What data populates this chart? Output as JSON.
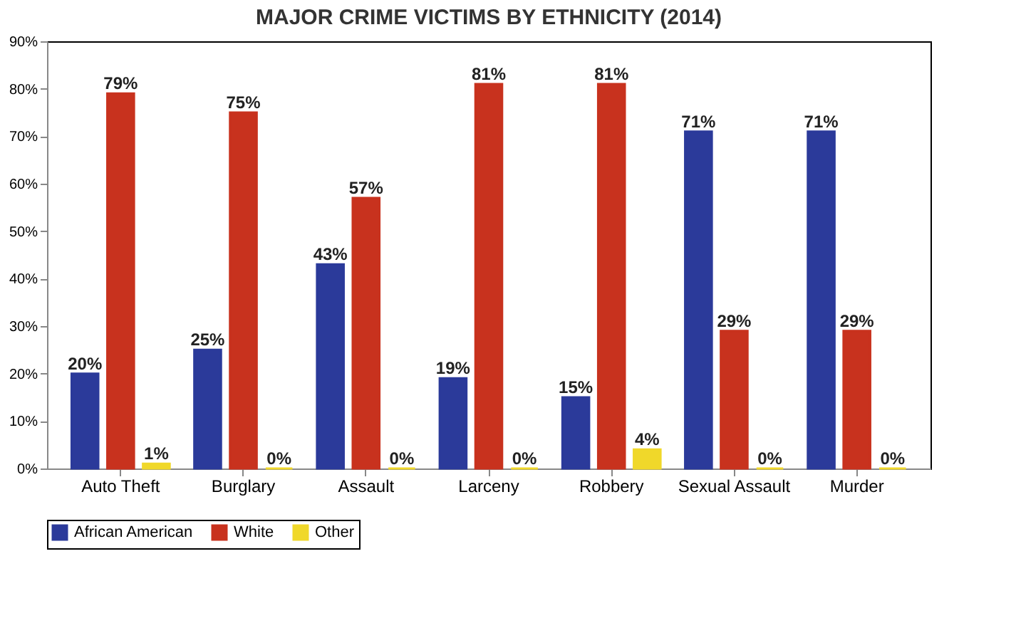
{
  "chart_data": {
    "type": "bar",
    "title": "MAJOR CRIME VICTIMS BY ETHNICITY (2014)",
    "categories": [
      "Auto Theft",
      "Burglary",
      "Assault",
      "Larceny",
      "Robbery",
      "Sexual Assault",
      "Murder"
    ],
    "series": [
      {
        "name": "African American",
        "color": "#2b3a9a",
        "values": [
          20,
          25,
          43,
          19,
          15,
          71,
          71
        ],
        "value_labels": [
          "20%",
          "25%",
          "43%",
          "19%",
          "15%",
          "71%",
          "71%"
        ]
      },
      {
        "name": "White",
        "color": "#c8321e",
        "values": [
          79,
          75,
          57,
          81,
          81,
          29,
          29
        ],
        "value_labels": [
          "79%",
          "75%",
          "57%",
          "81%",
          "81%",
          "29%",
          "29%"
        ]
      },
      {
        "name": "Other",
        "color": "#f0d82a",
        "values": [
          1,
          0,
          0,
          0,
          4,
          0,
          0
        ],
        "value_labels": [
          "1%",
          "0%",
          "0%",
          "0%",
          "4%",
          "0%",
          "0%"
        ]
      }
    ],
    "ylim": [
      0,
      90
    ],
    "yticks": [
      {
        "value": 0,
        "label": "0%"
      },
      {
        "value": 10,
        "label": "10%"
      },
      {
        "value": 20,
        "label": "20%"
      },
      {
        "value": 30,
        "label": "30%"
      },
      {
        "value": 40,
        "label": "40%"
      },
      {
        "value": 50,
        "label": "50%"
      },
      {
        "value": 60,
        "label": "60%"
      },
      {
        "value": 70,
        "label": "70%"
      },
      {
        "value": 80,
        "label": "80%"
      },
      {
        "value": 90,
        "label": "90%"
      }
    ],
    "legend": "bottom",
    "grid": false
  }
}
